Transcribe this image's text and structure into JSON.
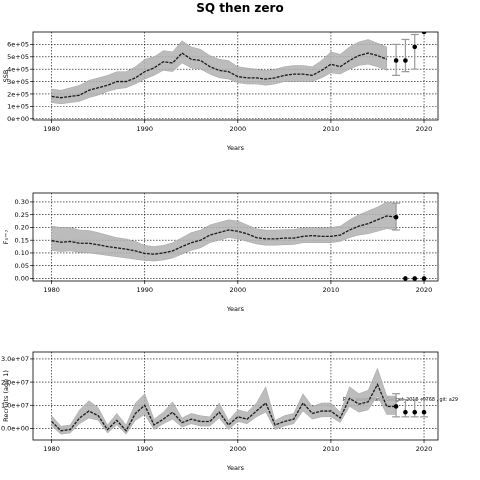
{
  "title": "SQ then zero",
  "annotation": "Run: assessment_Gadget_2018_r9768 , git: a29",
  "colors": {
    "band": "#b0b0b0",
    "line": "#1a1a1a",
    "proj_band": "#999999",
    "point": "#000000"
  },
  "chart_data": [
    {
      "type": "line",
      "xlabel": "Years",
      "ylabel": "SSB",
      "xlim": [
        1978,
        2021.5
      ],
      "ylim": [
        -10000,
        700000
      ],
      "xticks": [
        1980,
        1990,
        2000,
        2010,
        2020
      ],
      "xtick_labels": [
        "1980",
        "1990",
        "2000",
        "2010",
        "2020"
      ],
      "yticks": [
        0,
        100000,
        200000,
        300000,
        400000,
        500000,
        600000
      ],
      "ytick_labels": [
        "0e+00",
        "1e+05",
        "2e+05",
        "3e+05",
        "4e+05",
        "5e+05",
        "6e+05"
      ],
      "grid": true,
      "series": [
        {
          "x": [
            1980,
            1981,
            1982,
            1983,
            1984,
            1985,
            1986,
            1987,
            1988,
            1989,
            1990,
            1991,
            1992,
            1993,
            1994,
            1995,
            1996,
            1997,
            1998,
            1999,
            2000,
            2001,
            2002,
            2003,
            2004,
            2005,
            2006,
            2007,
            2008,
            2009,
            2010,
            2011,
            2012,
            2013,
            2014,
            2015,
            2016
          ],
          "y": [
            180000,
            170000,
            180000,
            190000,
            230000,
            250000,
            270000,
            300000,
            300000,
            330000,
            380000,
            410000,
            460000,
            450000,
            530000,
            480000,
            470000,
            420000,
            390000,
            380000,
            340000,
            330000,
            330000,
            320000,
            330000,
            350000,
            360000,
            360000,
            350000,
            390000,
            440000,
            420000,
            470000,
            510000,
            530000,
            510000,
            480000
          ],
          "lower": [
            130000,
            120000,
            130000,
            140000,
            170000,
            190000,
            220000,
            240000,
            250000,
            280000,
            320000,
            350000,
            390000,
            380000,
            450000,
            410000,
            400000,
            360000,
            330000,
            320000,
            290000,
            280000,
            280000,
            270000,
            280000,
            300000,
            300000,
            300000,
            300000,
            330000,
            370000,
            360000,
            400000,
            430000,
            440000,
            420000,
            390000
          ],
          "upper": [
            240000,
            230000,
            250000,
            270000,
            310000,
            330000,
            350000,
            380000,
            380000,
            420000,
            480000,
            500000,
            550000,
            540000,
            630000,
            580000,
            560000,
            510000,
            480000,
            470000,
            420000,
            410000,
            400000,
            390000,
            400000,
            420000,
            430000,
            430000,
            420000,
            470000,
            540000,
            520000,
            580000,
            620000,
            640000,
            610000,
            580000
          ]
        }
      ],
      "projection_points": {
        "x": [
          2017,
          2018,
          2019,
          2020
        ],
        "y": [
          470000,
          470000,
          580000,
          700000
        ]
      },
      "projection_bands": [
        {
          "x": 2017,
          "lower": 350000,
          "upper": 600000
        },
        {
          "x": 2018,
          "lower": 380000,
          "upper": 640000
        },
        {
          "x": 2019,
          "lower": 400000,
          "upper": 680000
        }
      ]
    },
    {
      "type": "line",
      "xlabel": "Years",
      "ylabel": "F₅−₇",
      "xlim": [
        1978,
        2021.5
      ],
      "ylim": [
        -0.01,
        0.335
      ],
      "xticks": [
        1980,
        1990,
        2000,
        2010,
        2020
      ],
      "xtick_labels": [
        "1980",
        "1990",
        "2000",
        "2010",
        "2020"
      ],
      "yticks": [
        0.0,
        0.05,
        0.1,
        0.15,
        0.2,
        0.25,
        0.3
      ],
      "ytick_labels": [
        "0.00",
        "0.05",
        "0.10",
        "0.15",
        "0.20",
        "0.25",
        "0.30"
      ],
      "grid": true,
      "series": [
        {
          "x": [
            1980,
            1981,
            1982,
            1983,
            1984,
            1985,
            1986,
            1987,
            1988,
            1989,
            1990,
            1991,
            1992,
            1993,
            1994,
            1995,
            1996,
            1997,
            1998,
            1999,
            2000,
            2001,
            2002,
            2003,
            2004,
            2005,
            2006,
            2007,
            2008,
            2009,
            2010,
            2011,
            2012,
            2013,
            2014,
            2015,
            2016,
            2017
          ],
          "y": [
            0.148,
            0.142,
            0.145,
            0.138,
            0.138,
            0.132,
            0.125,
            0.12,
            0.115,
            0.108,
            0.098,
            0.095,
            0.1,
            0.108,
            0.125,
            0.14,
            0.15,
            0.17,
            0.18,
            0.19,
            0.185,
            0.175,
            0.16,
            0.155,
            0.155,
            0.158,
            0.158,
            0.165,
            0.168,
            0.165,
            0.165,
            0.17,
            0.19,
            0.205,
            0.215,
            0.23,
            0.245,
            0.24
          ],
          "lower": [
            0.11,
            0.105,
            0.108,
            0.102,
            0.1,
            0.095,
            0.09,
            0.085,
            0.08,
            0.075,
            0.07,
            0.068,
            0.072,
            0.08,
            0.095,
            0.11,
            0.12,
            0.14,
            0.15,
            0.16,
            0.155,
            0.145,
            0.135,
            0.13,
            0.13,
            0.132,
            0.133,
            0.14,
            0.14,
            0.14,
            0.14,
            0.145,
            0.16,
            0.17,
            0.175,
            0.185,
            0.195,
            0.19
          ],
          "upper": [
            0.205,
            0.2,
            0.2,
            0.19,
            0.188,
            0.18,
            0.17,
            0.16,
            0.155,
            0.145,
            0.13,
            0.125,
            0.13,
            0.14,
            0.16,
            0.18,
            0.19,
            0.21,
            0.22,
            0.23,
            0.225,
            0.21,
            0.195,
            0.19,
            0.19,
            0.192,
            0.192,
            0.198,
            0.2,
            0.198,
            0.2,
            0.205,
            0.23,
            0.25,
            0.265,
            0.28,
            0.3,
            0.295
          ]
        }
      ],
      "projection_points": {
        "x": [
          2017,
          2018,
          2019,
          2020
        ],
        "y": [
          0.24,
          0.0,
          0.0,
          0.0
        ]
      },
      "projection_bands": [
        {
          "x": 2017,
          "lower": 0.19,
          "upper": 0.295
        }
      ]
    },
    {
      "type": "line",
      "xlabel": "Years",
      "ylabel": "Recruits (age 1)",
      "xlim": [
        1978,
        2021.5
      ],
      "ylim": [
        -5000000,
        33000000
      ],
      "xticks": [
        1980,
        1990,
        2000,
        2010,
        2020
      ],
      "xtick_labels": [
        "1980",
        "1990",
        "2000",
        "2010",
        "2020"
      ],
      "yticks": [
        0,
        10000000,
        20000000,
        30000000
      ],
      "ytick_labels": [
        "0.0e+00",
        "1.0e+07",
        "2.0e+07",
        "3.0e+07"
      ],
      "grid": true,
      "series": [
        {
          "x": [
            1980,
            1981,
            1982,
            1983,
            1984,
            1985,
            1986,
            1987,
            1988,
            1989,
            1990,
            1991,
            1992,
            1993,
            1994,
            1995,
            1996,
            1997,
            1998,
            1999,
            2000,
            2001,
            2002,
            2003,
            2004,
            2005,
            2006,
            2007,
            2008,
            2009,
            2010,
            2011,
            2012,
            2013,
            2014,
            2015,
            2016,
            2017
          ],
          "y": [
            3000000,
            -1000000,
            -500000,
            4500000,
            7500000,
            5500000,
            -500000,
            3500000,
            -1000000,
            6500000,
            10000000,
            1500000,
            4000000,
            7000000,
            2500000,
            4000000,
            3000000,
            3000000,
            7000000,
            1500000,
            5000000,
            4000000,
            7500000,
            11000000,
            1500000,
            3000000,
            4000000,
            11000000,
            6500000,
            7500000,
            7500000,
            4500000,
            13000000,
            10500000,
            11500000,
            19000000,
            9500000,
            9500000
          ],
          "lower": [
            1000000,
            -2500000,
            -2000000,
            2000000,
            4500000,
            3500000,
            -2000000,
            1500000,
            -2500000,
            3500000,
            6000000,
            -500000,
            2000000,
            4000000,
            500000,
            2000000,
            1000000,
            1000000,
            4500000,
            -500000,
            3000000,
            2000000,
            5000000,
            7000000,
            -500000,
            1000000,
            2000000,
            7500000,
            4000000,
            5000000,
            5000000,
            2500000,
            9500000,
            7000000,
            8000000,
            14000000,
            6000000,
            6000000
          ],
          "upper": [
            5500000,
            1000000,
            1500000,
            8000000,
            12000000,
            9000000,
            1500000,
            6500000,
            1500000,
            11000000,
            15000000,
            4000000,
            7000000,
            11500000,
            4500000,
            6500000,
            5500000,
            5000000,
            11000000,
            3500000,
            8000000,
            7000000,
            11000000,
            18000000,
            3500000,
            5500000,
            6500000,
            15000000,
            9500000,
            11000000,
            11000000,
            7000000,
            18000000,
            15000000,
            16500000,
            26000000,
            14000000,
            14000000
          ]
        }
      ],
      "projection_points": {
        "x": [
          2017,
          2018,
          2019,
          2020
        ],
        "y": [
          9500000,
          7000000,
          7000000,
          7000000
        ]
      },
      "projection_bands": [
        {
          "x": 2017,
          "lower": 5000000,
          "upper": 15000000
        },
        {
          "x": 2018,
          "lower": 5000000,
          "upper": 12500000
        },
        {
          "x": 2019,
          "lower": 5000000,
          "upper": 12500000
        },
        {
          "x": 2020,
          "lower": 5000000,
          "upper": 12500000
        }
      ]
    }
  ]
}
